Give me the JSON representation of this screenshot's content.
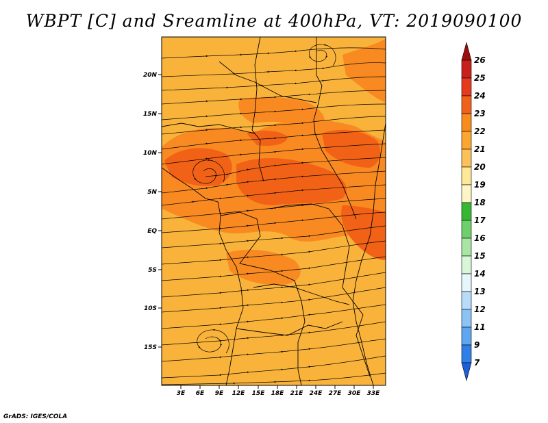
{
  "title": "WBPT [C] and Sreamline at 400hPa, VT: 2019090100",
  "credit": "GrADS: IGES/COLA",
  "map": {
    "lat_labels": [
      "20N",
      "15N",
      "10N",
      "5N",
      "EQ",
      "5S",
      "10S",
      "15S"
    ],
    "lon_labels": [
      "3E",
      "6E",
      "9E",
      "12E",
      "15E",
      "18E",
      "21E",
      "24E",
      "27E",
      "30E",
      "33E"
    ],
    "base_color": "#f9b33b",
    "warm_color": "#f98a22",
    "hot_color": "#f26216"
  },
  "colorbar": {
    "labels": [
      "26",
      "25",
      "24",
      "23",
      "22",
      "21",
      "20",
      "19",
      "18",
      "17",
      "16",
      "15",
      "14",
      "13",
      "12",
      "11",
      "9",
      "7"
    ],
    "colors": [
      "#9e0d0d",
      "#c8201b",
      "#e63a1c",
      "#f2611b",
      "#f98a1e",
      "#fca630",
      "#fcc15a",
      "#fde898",
      "#fdf5c6",
      "#35b733",
      "#6dd06b",
      "#a9e5a4",
      "#daf6d8",
      "#e6f6fc",
      "#b6dcfa",
      "#8cc3f5",
      "#5ea6ef",
      "#2f7fe6",
      "#1c5fd8"
    ]
  }
}
